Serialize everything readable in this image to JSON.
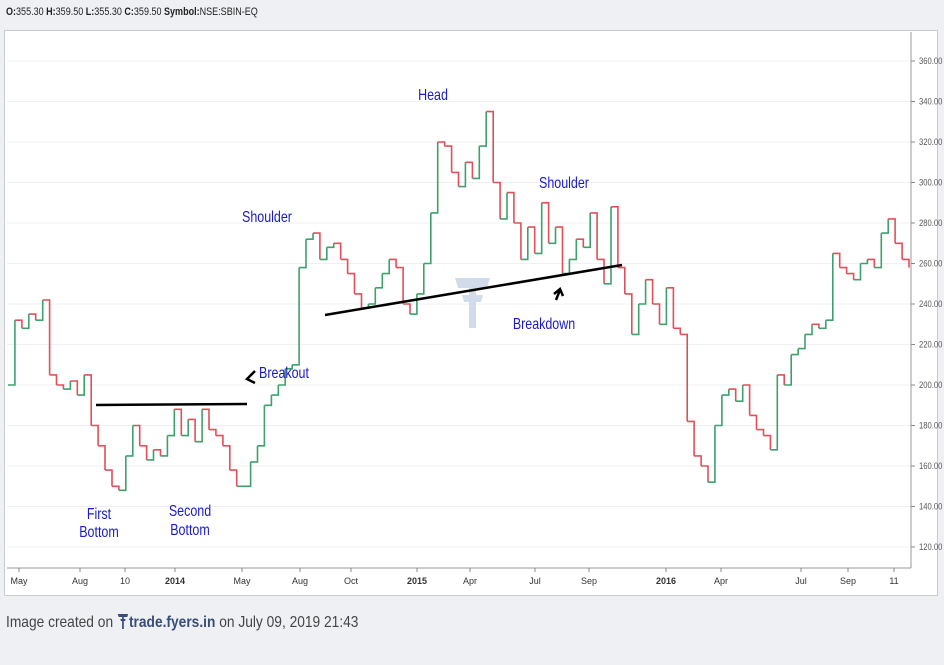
{
  "ohlc_header": {
    "o_label": "O:",
    "o": "355.30",
    "h_label": "H:",
    "h": "359.50",
    "l_label": "L:",
    "l": "355.30",
    "c_label": "C:",
    "c": "359.50",
    "symbol_label": "Symbol:",
    "symbol": "NSE:SBIN-EQ"
  },
  "colors": {
    "up": "#3ea06e",
    "down": "#e0505a",
    "annotation": "#1a1acc",
    "trendline": "#000000"
  },
  "chart_data": {
    "type": "line",
    "style": "kagi-like step (green up / red down)",
    "ylim": [
      110,
      370
    ],
    "y_ticks": [
      "120.00",
      "140.00",
      "160.00",
      "180.00",
      "200.00",
      "220.00",
      "240.00",
      "260.00",
      "280.00",
      "300.00",
      "320.00",
      "340.00",
      "360.00"
    ],
    "x_tick_labels": [
      "May",
      "Aug",
      "10",
      "2014",
      "May",
      "Aug",
      "Oct",
      "2015",
      "Apr",
      "Jul",
      "Sep",
      "2016",
      "Apr",
      "Jul",
      "Sep",
      "11"
    ],
    "x_ticks_bold": [
      "2014",
      "2015",
      "2016"
    ],
    "series": [
      {
        "approx_values": [
          200,
          232,
          228,
          235,
          232,
          242,
          205,
          200,
          198,
          202,
          195,
          205,
          180,
          170,
          158,
          150,
          148,
          165,
          180,
          170,
          163,
          168,
          165,
          175,
          188,
          175,
          183,
          172,
          188,
          178,
          175,
          170,
          158,
          150,
          150,
          162,
          170,
          190,
          195,
          200,
          208,
          210,
          258,
          272,
          275,
          262,
          268,
          270,
          262,
          255,
          245,
          238,
          240,
          248,
          255,
          262,
          258,
          240,
          235,
          245,
          260,
          285,
          320,
          318,
          305,
          298,
          310,
          302,
          318,
          335,
          300,
          282,
          295,
          280,
          262,
          278,
          265,
          290,
          270,
          278,
          255,
          262,
          272,
          268,
          285,
          262,
          250,
          288,
          258,
          245,
          225,
          240,
          252,
          240,
          230,
          248,
          228,
          225,
          182,
          165,
          160,
          152,
          180,
          195,
          198,
          192,
          200,
          185,
          178,
          175,
          168,
          205,
          200,
          215,
          218,
          225,
          230,
          228,
          232,
          265,
          258,
          255,
          252,
          260,
          262,
          258,
          275,
          282,
          270,
          262,
          258
        ]
      }
    ],
    "annotations": [
      {
        "text": "First",
        "text2": "Bottom"
      },
      {
        "text": "Second",
        "text2": "Bottom"
      },
      {
        "text": "Breakout"
      },
      {
        "text": "Shoulder"
      },
      {
        "text": "Head"
      },
      {
        "text": "Shoulder"
      },
      {
        "text": "Breakdown"
      }
    ],
    "lines": [
      {
        "name": "double-bottom-neckline",
        "from": [
          "2013-08",
          190
        ],
        "to": [
          "2014-05",
          190
        ]
      },
      {
        "name": "head-shoulders-neckline",
        "from": [
          "2014-08",
          233
        ],
        "to": [
          "2015-09",
          258
        ]
      }
    ]
  },
  "footer": {
    "prefix": "Image created on",
    "brand": "trade.fyers.in",
    "suffix": "on July 09, 2019 21:43"
  }
}
